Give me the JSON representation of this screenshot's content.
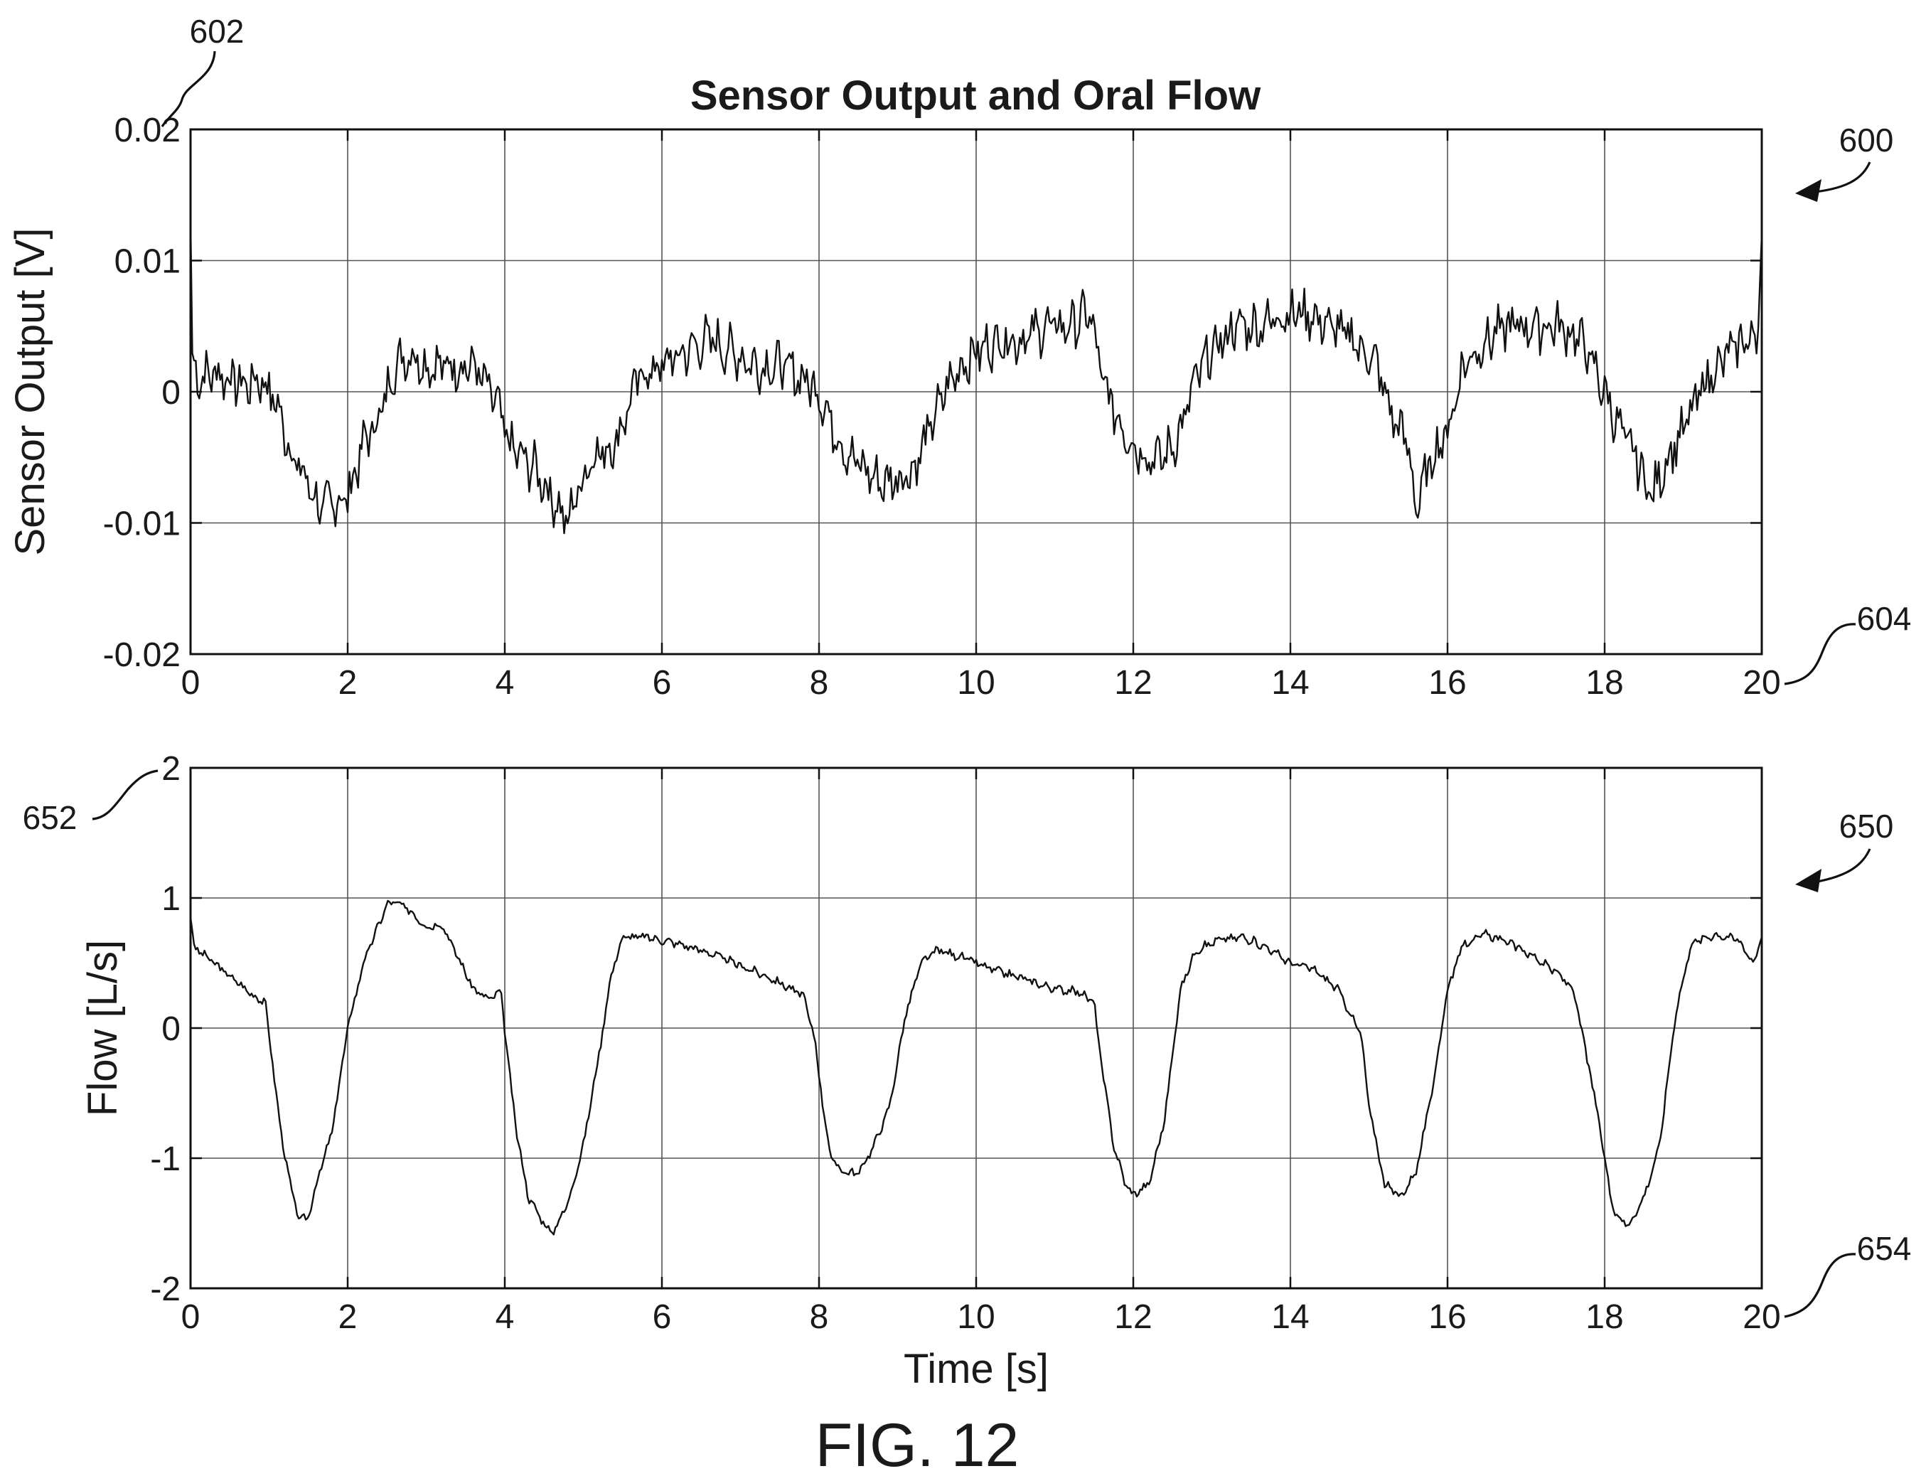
{
  "chart_data": {
    "title": "Sensor Output and Oral Flow",
    "figure_label": "FIG. 12",
    "reference_numerals": {
      "figure": "600",
      "top_axis": "602",
      "top_time_axis": "604",
      "bottom_plot": "650",
      "bottom_axis": "652",
      "bottom_time_axis": "654"
    },
    "subplots": [
      {
        "type": "line",
        "id": "sensor",
        "xlabel": "",
        "ylabel": "Sensor Output [V]",
        "xlim": [
          0,
          20
        ],
        "ylim": [
          -0.02,
          0.02
        ],
        "xticks": [
          0,
          2,
          4,
          6,
          8,
          10,
          12,
          14,
          16,
          18,
          20
        ],
        "yticks": [
          -0.02,
          -0.01,
          0,
          0.01,
          0.02
        ],
        "xtick_labels": [
          "0",
          "2",
          "4",
          "6",
          "8",
          "10",
          "12",
          "14",
          "16",
          "18",
          "20"
        ],
        "ytick_labels": [
          "-0.02",
          "-0.01",
          "0",
          "0.01",
          "0.02"
        ],
        "grid": true,
        "series": [
          {
            "x": [
              0,
              0.02,
              0.1,
              0.3,
              0.5,
              0.7,
              0.9,
              1.1,
              1.3,
              1.5,
              1.65,
              1.8,
              2.0,
              2.2,
              2.4,
              2.6,
              2.8,
              3.0,
              3.3,
              3.6,
              3.9,
              4.05,
              4.2,
              4.4,
              4.6,
              4.8,
              4.9,
              5.1,
              5.4,
              5.7,
              6.0,
              6.3,
              6.6,
              6.9,
              7.2,
              7.5,
              7.8,
              8.0,
              8.2,
              8.4,
              8.6,
              8.8,
              9.0,
              9.2,
              9.4,
              9.6,
              9.8,
              10.0,
              10.3,
              10.6,
              10.9,
              11.2,
              11.45,
              11.6,
              11.8,
              12.0,
              12.2,
              12.4,
              12.6,
              12.8,
              13.0,
              13.3,
              13.6,
              13.9,
              14.2,
              14.5,
              14.8,
              15.1,
              15.3,
              15.5,
              15.6,
              15.8,
              16.0,
              16.2,
              16.5,
              16.8,
              17.1,
              17.4,
              17.7,
              18.0,
              18.2,
              18.4,
              18.6,
              18.8,
              19.0,
              19.3,
              19.6,
              19.8,
              19.95,
              20.0
            ],
            "y": [
              0.013,
              0.003,
              0.001,
              0.0015,
              0.001,
              0.0005,
              0.001,
              -0.001,
              -0.005,
              -0.007,
              -0.009,
              -0.0085,
              -0.008,
              -0.004,
              -0.002,
              0.002,
              0.003,
              0.002,
              0.002,
              0.002,
              -0.001,
              -0.004,
              -0.005,
              -0.006,
              -0.008,
              -0.01,
              -0.008,
              -0.005,
              -0.004,
              0.001,
              0.002,
              0.003,
              0.004,
              0.003,
              0.002,
              0.002,
              0.001,
              0.0,
              -0.003,
              -0.005,
              -0.006,
              -0.007,
              -0.0065,
              -0.006,
              -0.003,
              0.0,
              0.002,
              0.003,
              0.004,
              0.004,
              0.005,
              0.005,
              0.006,
              0.001,
              -0.002,
              -0.004,
              -0.005,
              -0.005,
              -0.003,
              0.001,
              0.003,
              0.005,
              0.005,
              0.006,
              0.006,
              0.005,
              0.004,
              0.002,
              -0.002,
              -0.004,
              -0.009,
              -0.005,
              -0.003,
              0.002,
              0.004,
              0.005,
              0.005,
              0.005,
              0.004,
              0.0,
              -0.003,
              -0.005,
              -0.008,
              -0.005,
              -0.003,
              0.001,
              0.003,
              0.004,
              0.004,
              0.012
            ]
          }
        ]
      },
      {
        "type": "line",
        "id": "flow",
        "xlabel": "Time [s]",
        "ylabel": "Flow [L/s]",
        "xlim": [
          0,
          20
        ],
        "ylim": [
          -2,
          2
        ],
        "xticks": [
          0,
          2,
          4,
          6,
          8,
          10,
          12,
          14,
          16,
          18,
          20
        ],
        "yticks": [
          -2,
          -1,
          0,
          1,
          2
        ],
        "xtick_labels": [
          "0",
          "2",
          "4",
          "6",
          "8",
          "10",
          "12",
          "14",
          "16",
          "18",
          "20"
        ],
        "ytick_labels": [
          "-2",
          "-1",
          "0",
          "1",
          "2"
        ],
        "grid": true,
        "series": [
          {
            "x": [
              0,
              0.05,
              0.2,
              0.4,
              0.6,
              0.8,
              0.95,
              1.05,
              1.15,
              1.3,
              1.4,
              1.5,
              1.6,
              1.8,
              2.0,
              2.2,
              2.4,
              2.5,
              2.6,
              2.8,
              3.0,
              3.2,
              3.4,
              3.6,
              3.8,
              3.95,
              4.05,
              4.15,
              4.3,
              4.5,
              4.6,
              4.8,
              5.0,
              5.2,
              5.35,
              5.5,
              5.8,
              6.2,
              6.6,
              7.0,
              7.4,
              7.8,
              7.95,
              8.05,
              8.15,
              8.3,
              8.5,
              8.7,
              8.9,
              9.1,
              9.3,
              9.5,
              9.8,
              10.2,
              10.6,
              11.0,
              11.3,
              11.5,
              11.6,
              11.75,
              11.9,
              12.0,
              12.2,
              12.4,
              12.6,
              12.8,
              13.1,
              13.4,
              13.7,
              14.0,
              14.3,
              14.6,
              14.9,
              15.0,
              15.2,
              15.4,
              15.6,
              15.8,
              16.0,
              16.2,
              16.5,
              16.8,
              17.1,
              17.4,
              17.6,
              17.8,
              17.95,
              18.1,
              18.3,
              18.5,
              18.7,
              18.9,
              19.1,
              19.4,
              19.7,
              19.9,
              20.0
            ],
            "y": [
              0.85,
              0.62,
              0.55,
              0.45,
              0.35,
              0.25,
              0.2,
              -0.3,
              -0.8,
              -1.3,
              -1.48,
              -1.45,
              -1.2,
              -0.8,
              0.0,
              0.5,
              0.8,
              0.95,
              0.97,
              0.9,
              0.78,
              0.8,
              0.55,
              0.3,
              0.22,
              0.28,
              -0.3,
              -0.8,
              -1.3,
              -1.5,
              -1.58,
              -1.35,
              -0.9,
              -0.2,
              0.4,
              0.7,
              0.7,
              0.65,
              0.58,
              0.48,
              0.38,
              0.25,
              -0.1,
              -0.6,
              -1.0,
              -1.1,
              -1.12,
              -0.9,
              -0.6,
              0.1,
              0.5,
              0.6,
              0.55,
              0.45,
              0.38,
              0.3,
              0.28,
              0.2,
              -0.3,
              -0.9,
              -1.2,
              -1.28,
              -1.2,
              -0.7,
              0.3,
              0.6,
              0.68,
              0.7,
              0.62,
              0.5,
              0.45,
              0.3,
              -0.05,
              -0.6,
              -1.2,
              -1.3,
              -1.1,
              -0.5,
              0.3,
              0.65,
              0.72,
              0.65,
              0.55,
              0.42,
              0.3,
              -0.3,
              -0.8,
              -1.4,
              -1.52,
              -1.3,
              -0.9,
              0.1,
              0.65,
              0.72,
              0.68,
              0.5,
              0.7
            ]
          }
        ]
      }
    ]
  }
}
